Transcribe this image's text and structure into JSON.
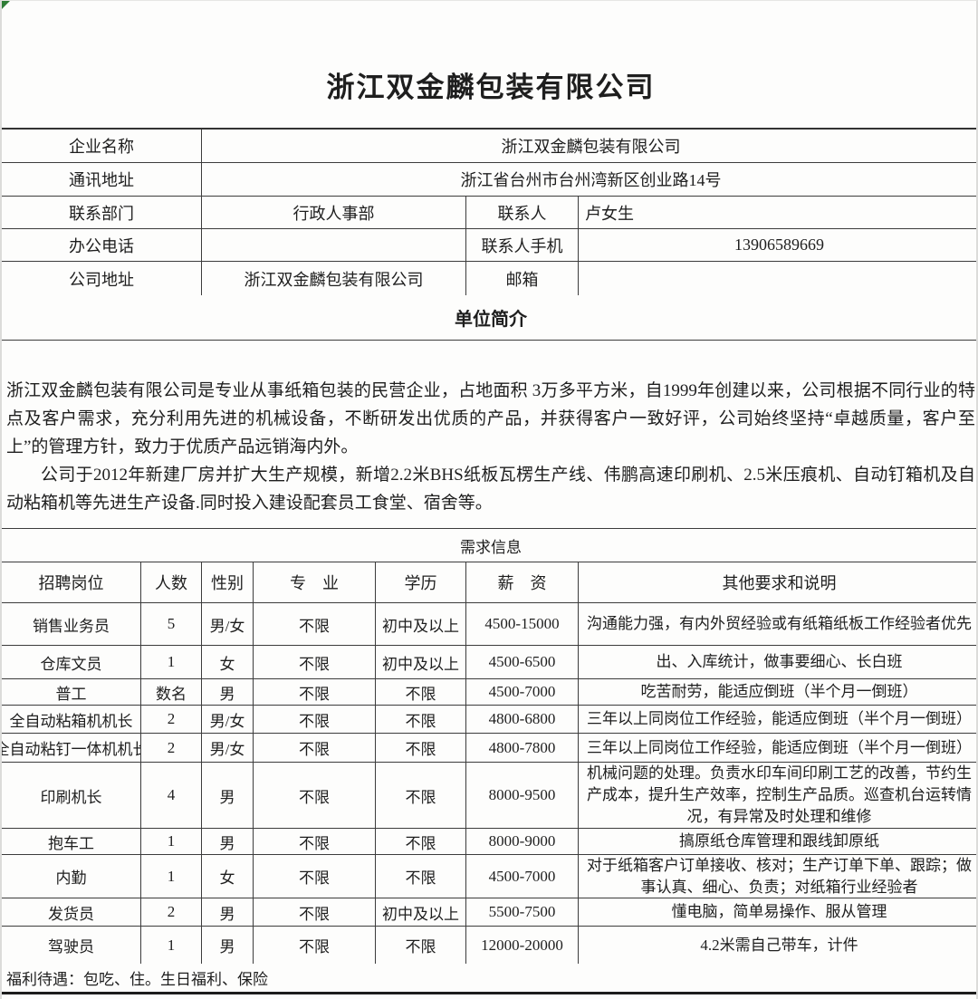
{
  "title": "浙江双金麟包装有限公司",
  "info": {
    "r1": {
      "label": "企业名称",
      "value": "浙江双金麟包装有限公司"
    },
    "r2": {
      "label": "通讯地址",
      "value": "浙江省台州市台州湾新区创业路14号"
    },
    "r3": {
      "l1": "联系部门",
      "v1": "行政人事部",
      "l2": "联系人",
      "v2": "卢女生"
    },
    "r4": {
      "l1": "办公电话",
      "v1": "",
      "l2": "联系人手机",
      "v2": "13906589669"
    },
    "r5": {
      "l1": "公司地址",
      "v1": "浙江双金麟包装有限公司",
      "l2": "邮箱",
      "v2": ""
    }
  },
  "sections": {
    "intro_title": "单位简介",
    "demand_title": "需求信息"
  },
  "intro": {
    "p1": "浙江双金麟包装有限公司是专业从事纸箱包装的民营企业，占地面积 3万多平方米，自1999年创建以来，公司根据不同行业的特点及客户需求，充分利用先进的机械设备，不断研发出优质的产品，并获得客户一致好评，公司始终坚持“卓越质量，客户至上”的管理方针，致力于优质产品远销海内外。",
    "p2": "公司于2012年新建厂房并扩大生产规模，新增2.2米BHS纸板瓦楞生产线、伟鹏高速印刷机、2.5米压痕机、自动钉箱机及自动粘箱机等先进生产设备.同时投入建设配套员工食堂、宿舍等。"
  },
  "jobs": {
    "headers": [
      "招聘岗位",
      "人数",
      "性别",
      "专　业",
      "学历",
      "薪　资",
      "其他要求和说明"
    ],
    "rows": [
      [
        "销售业务员",
        "5",
        "男/女",
        "不限",
        "初中及以上",
        "4500-15000",
        "沟通能力强，有内外贸经验或有纸箱纸板工作经验者优先"
      ],
      [
        "仓库文员",
        "1",
        "女",
        "不限",
        "初中及以上",
        "4500-6500",
        "出、入库统计，做事要细心、长白班"
      ],
      [
        "普工",
        "数名",
        "男",
        "不限",
        "不限",
        "4500-7000",
        "吃苦耐劳，能适应倒班（半个月一倒班）"
      ],
      [
        "全自动粘箱机机长",
        "2",
        "男/女",
        "不限",
        "不限",
        "4800-6800",
        "三年以上同岗位工作经验，能适应倒班（半个月一倒班）"
      ],
      [
        "全自动粘钉一体机机长",
        "2",
        "男/女",
        "不限",
        "不限",
        "4800-7800",
        "三年以上同岗位工作经验，能适应倒班（半个月一倒班）"
      ],
      [
        "印刷机长",
        "4",
        "男",
        "不限",
        "不限",
        "8000-9500",
        "机械问题的处理。负责水印车间印刷工艺的改善，节约生产成本，提升生产效率，控制生产品质。巡查机台运转情况，有异常及时处理和维修"
      ],
      [
        "抱车工",
        "1",
        "男",
        "不限",
        "不限",
        "8000-9000",
        "搞原纸仓库管理和跟线卸原纸"
      ],
      [
        "内勤",
        "1",
        "女",
        "不限",
        "不限",
        "4500-7000",
        "对于纸箱客户订单接收、核对；生产订单下单、跟踪；做事认真、细心、负责；对纸箱行业经验者"
      ],
      [
        "发货员",
        "2",
        "男",
        "不限",
        "初中及以上",
        "5500-7500",
        "懂电脑，简单易操作、服从管理"
      ],
      [
        "驾驶员",
        "1",
        "男",
        "不限",
        "不限",
        "12000-20000",
        "4.2米需自己带车，计件"
      ]
    ]
  },
  "footer": {
    "welfare": "福利待遇：包吃、住。生日福利、保险"
  },
  "colors": {
    "border": "#3c3c3c",
    "text": "#1e1e1e",
    "paper": "#fdfdfc",
    "corner_mark": "#2f7d36"
  }
}
